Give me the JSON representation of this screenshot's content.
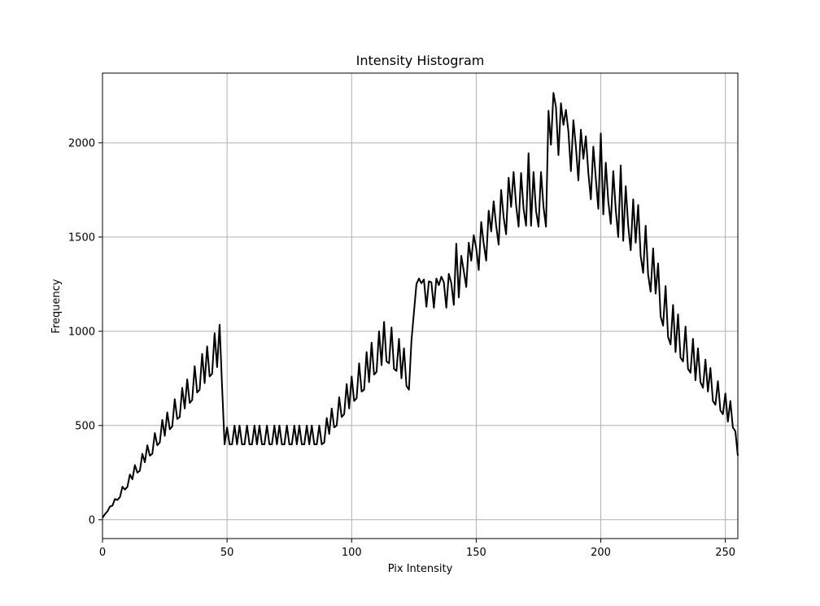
{
  "chart_data": {
    "type": "line",
    "title": "Intensity Histogram",
    "xlabel": "Pix Intensity",
    "ylabel": "Frequency",
    "xlim": [
      0,
      255
    ],
    "ylim": [
      -100,
      2370
    ],
    "xticks": [
      0,
      50,
      100,
      150,
      200,
      250
    ],
    "yticks": [
      0,
      500,
      1000,
      1500,
      2000
    ],
    "grid": true,
    "line_color": "#000000",
    "grid_color": "#b0b0b0",
    "series": [
      {
        "x": [
          0,
          1,
          2,
          3,
          4,
          5,
          6,
          7,
          8,
          9,
          10,
          11,
          12,
          13,
          14,
          15,
          16,
          17,
          18,
          19,
          20,
          21,
          22,
          23,
          24,
          25,
          26,
          27,
          28,
          29,
          30,
          31,
          32,
          33,
          34,
          35,
          36,
          37,
          38,
          39,
          40,
          41,
          42,
          43,
          44,
          45,
          46,
          47,
          48,
          49,
          50,
          51,
          52,
          53,
          54,
          55,
          56,
          57,
          58,
          59,
          60,
          61,
          62,
          63,
          64,
          65,
          66,
          67,
          68,
          69,
          70,
          71,
          72,
          73,
          74,
          75,
          76,
          77,
          78,
          79,
          80,
          81,
          82,
          83,
          84,
          85,
          86,
          87,
          88,
          89,
          90,
          91,
          92,
          93,
          94,
          95,
          96,
          97,
          98,
          99,
          100,
          101,
          102,
          103,
          104,
          105,
          106,
          107,
          108,
          109,
          110,
          111,
          112,
          113,
          114,
          115,
          116,
          117,
          118,
          119,
          120,
          121,
          122,
          123,
          124,
          125,
          126,
          127,
          128,
          129,
          130,
          131,
          132,
          133,
          134,
          135,
          136,
          137,
          138,
          139,
          140,
          141,
          142,
          143,
          144,
          145,
          146,
          147,
          148,
          149,
          150,
          151,
          152,
          153,
          154,
          155,
          156,
          157,
          158,
          159,
          160,
          161,
          162,
          163,
          164,
          165,
          166,
          167,
          168,
          169,
          170,
          171,
          172,
          173,
          174,
          175,
          176,
          177,
          178,
          179,
          180,
          181,
          182,
          183,
          184,
          185,
          186,
          187,
          188,
          189,
          190,
          191,
          192,
          193,
          194,
          195,
          196,
          197,
          198,
          199,
          200,
          201,
          202,
          203,
          204,
          205,
          206,
          207,
          208,
          209,
          210,
          211,
          212,
          213,
          214,
          215,
          216,
          217,
          218,
          219,
          220,
          221,
          222,
          223,
          224,
          225,
          226,
          227,
          228,
          229,
          230,
          231,
          232,
          233,
          234,
          235,
          236,
          237,
          238,
          239,
          240,
          241,
          242,
          243,
          244,
          245,
          246,
          247,
          248,
          249,
          250,
          251,
          252,
          253,
          254,
          255
        ],
        "values": [
          10,
          30,
          45,
          70,
          75,
          110,
          105,
          120,
          175,
          160,
          175,
          240,
          215,
          290,
          250,
          260,
          350,
          305,
          395,
          340,
          350,
          460,
          395,
          410,
          530,
          445,
          570,
          480,
          495,
          640,
          535,
          545,
          700,
          590,
          745,
          620,
          635,
          815,
          675,
          690,
          880,
          725,
          920,
          760,
          775,
          990,
          810,
          1035,
          705,
          400,
          490,
          400,
          400,
          500,
          400,
          500,
          400,
          400,
          500,
          400,
          400,
          500,
          400,
          500,
          400,
          400,
          500,
          400,
          400,
          500,
          400,
          500,
          400,
          400,
          500,
          400,
          400,
          500,
          400,
          500,
          400,
          400,
          500,
          400,
          500,
          400,
          400,
          500,
          400,
          410,
          540,
          455,
          590,
          490,
          500,
          650,
          545,
          560,
          720,
          590,
          760,
          630,
          645,
          830,
          680,
          690,
          890,
          730,
          940,
          770,
          785,
          1000,
          820,
          1050,
          840,
          830,
          1020,
          800,
          790,
          960,
          750,
          910,
          710,
          690,
          950,
          1100,
          1250,
          1280,
          1255,
          1275,
          1130,
          1265,
          1260,
          1125,
          1280,
          1245,
          1290,
          1260,
          1125,
          1305,
          1255,
          1140,
          1465,
          1180,
          1400,
          1320,
          1235,
          1470,
          1375,
          1510,
          1440,
          1325,
          1580,
          1465,
          1375,
          1640,
          1530,
          1690,
          1560,
          1460,
          1750,
          1605,
          1515,
          1815,
          1660,
          1845,
          1670,
          1555,
          1840,
          1650,
          1560,
          1945,
          1560,
          1845,
          1640,
          1555,
          1845,
          1660,
          1555,
          2170,
          1990,
          2265,
          2190,
          1935,
          2210,
          2095,
          2175,
          2060,
          1850,
          2120,
          1980,
          1800,
          2070,
          1915,
          2035,
          1840,
          1700,
          1980,
          1810,
          1650,
          2050,
          1620,
          1895,
          1690,
          1570,
          1850,
          1645,
          1500,
          1880,
          1480,
          1770,
          1560,
          1430,
          1700,
          1470,
          1670,
          1400,
          1310,
          1560,
          1300,
          1210,
          1440,
          1200,
          1360,
          1080,
          1030,
          1240,
          970,
          930,
          1140,
          890,
          1090,
          860,
          840,
          1025,
          800,
          780,
          960,
          740,
          910,
          730,
          700,
          850,
          680,
          805,
          630,
          610,
          735,
          580,
          560,
          670,
          520,
          630,
          490,
          470,
          340
        ]
      }
    ]
  }
}
